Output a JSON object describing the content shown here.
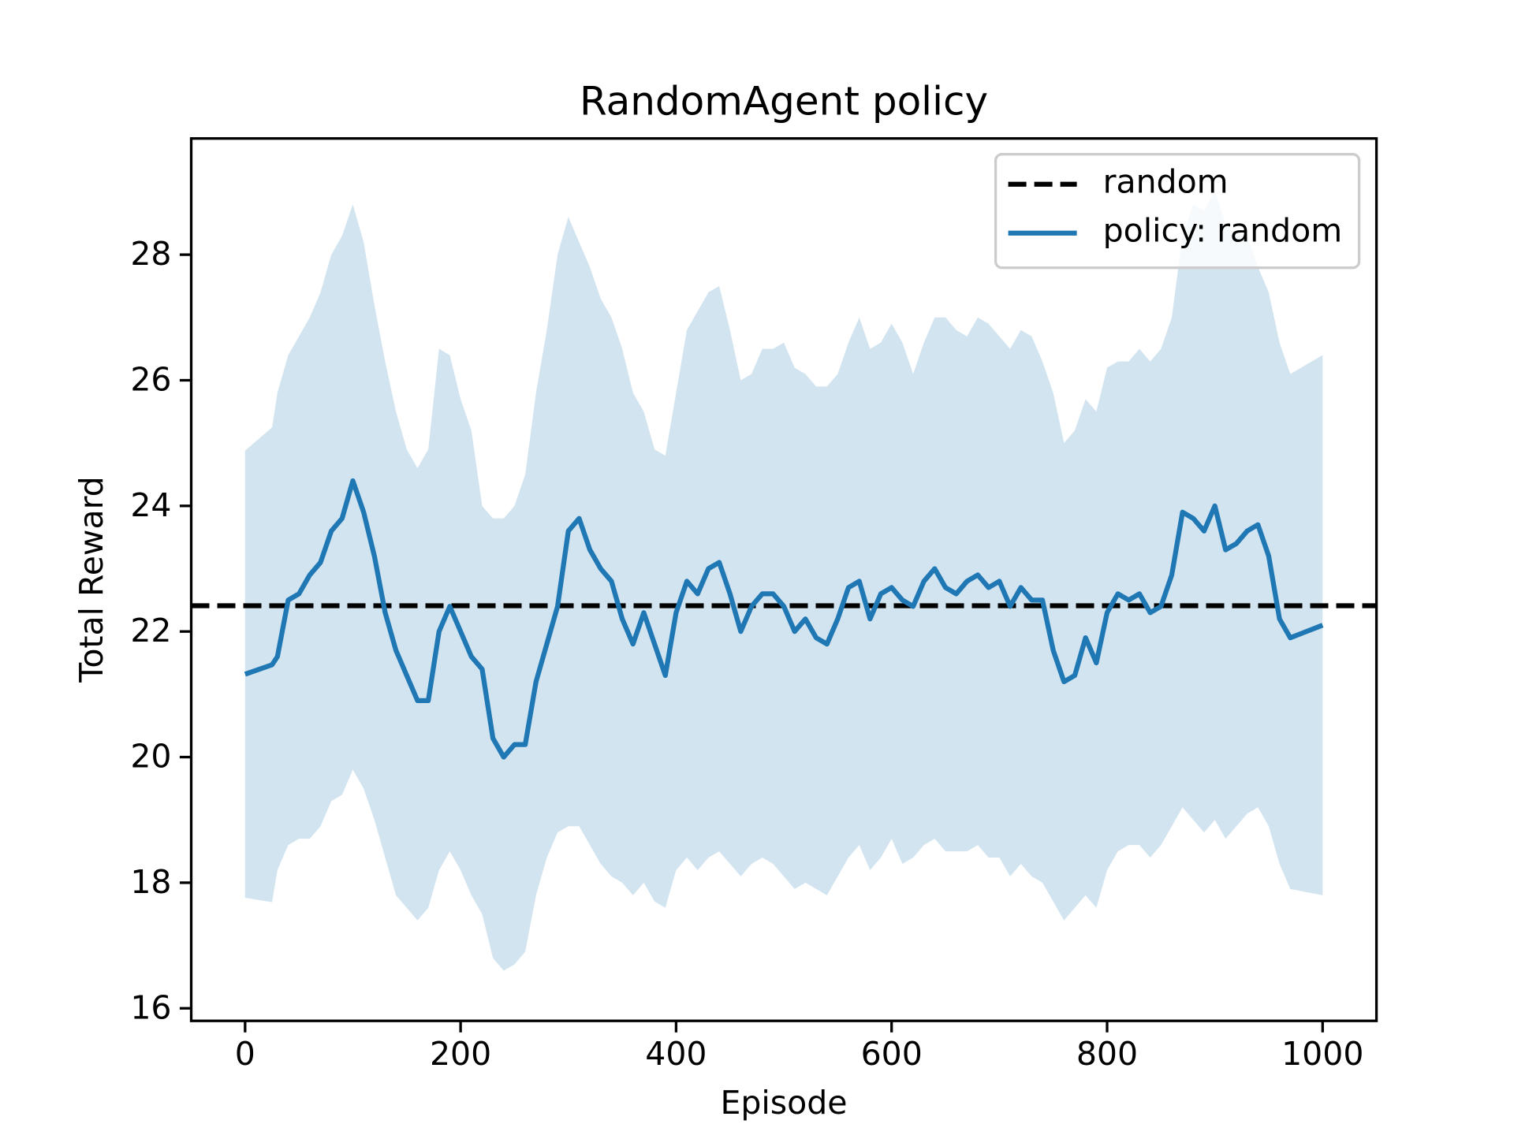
{
  "chart_data": {
    "type": "line",
    "title": "RandomAgent policy",
    "xlabel": "Episode",
    "ylabel": "Total Reward",
    "xlim": [
      -50,
      1050
    ],
    "ylim": [
      15.8,
      29.85
    ],
    "xticks": [
      0,
      200,
      400,
      600,
      800,
      1000
    ],
    "yticks": [
      16,
      18,
      20,
      22,
      24,
      26,
      28
    ],
    "grid": false,
    "legend": "upper right",
    "hline": {
      "name": "random",
      "value": 22.41,
      "color": "#000000",
      "dashed": true
    },
    "x": [
      0,
      25,
      30,
      40,
      50,
      60,
      70,
      80,
      90,
      100,
      110,
      120,
      130,
      140,
      150,
      160,
      170,
      180,
      190,
      200,
      210,
      220,
      230,
      240,
      250,
      260,
      270,
      280,
      290,
      300,
      310,
      320,
      330,
      340,
      350,
      360,
      370,
      380,
      390,
      400,
      410,
      420,
      430,
      440,
      450,
      460,
      470,
      480,
      490,
      500,
      510,
      520,
      530,
      540,
      550,
      560,
      570,
      580,
      590,
      600,
      610,
      620,
      630,
      640,
      650,
      660,
      670,
      680,
      690,
      700,
      710,
      720,
      730,
      740,
      750,
      760,
      770,
      780,
      790,
      800,
      810,
      820,
      830,
      840,
      850,
      860,
      870,
      880,
      890,
      900,
      910,
      920,
      930,
      940,
      950,
      960,
      970,
      1000
    ],
    "series": [
      {
        "name": "policy: random",
        "color": "#1f77b4",
        "band_opacity": 0.2,
        "values": [
          21.32,
          21.47,
          21.6,
          22.5,
          22.6,
          22.9,
          23.1,
          23.6,
          23.8,
          24.4,
          23.9,
          23.2,
          22.3,
          21.7,
          21.3,
          20.9,
          20.9,
          22.0,
          22.4,
          22.0,
          21.6,
          21.4,
          20.3,
          20.0,
          20.2,
          20.2,
          21.2,
          21.8,
          22.4,
          23.6,
          23.8,
          23.3,
          23.0,
          22.8,
          22.2,
          21.8,
          22.3,
          21.8,
          21.3,
          22.3,
          22.8,
          22.6,
          23.0,
          23.1,
          22.6,
          22.0,
          22.4,
          22.6,
          22.6,
          22.4,
          22.0,
          22.2,
          21.9,
          21.8,
          22.2,
          22.7,
          22.8,
          22.2,
          22.6,
          22.7,
          22.5,
          22.4,
          22.8,
          23.0,
          22.7,
          22.6,
          22.8,
          22.9,
          22.7,
          22.8,
          22.4,
          22.7,
          22.5,
          22.5,
          21.7,
          21.2,
          21.3,
          21.9,
          21.5,
          22.3,
          22.6,
          22.5,
          22.6,
          22.3,
          22.4,
          22.9,
          23.9,
          23.8,
          23.6,
          24.0,
          23.3,
          23.4,
          23.6,
          23.7,
          23.2,
          22.2,
          21.9,
          22.1
        ],
        "upper": [
          24.88,
          25.25,
          25.8,
          26.4,
          26.7,
          27.0,
          27.4,
          28.0,
          28.3,
          28.8,
          28.2,
          27.2,
          26.3,
          25.5,
          24.9,
          24.6,
          24.9,
          26.5,
          26.4,
          25.7,
          25.2,
          24.0,
          23.8,
          23.8,
          24.0,
          24.5,
          25.8,
          26.8,
          28.0,
          28.6,
          28.2,
          27.8,
          27.3,
          27.0,
          26.5,
          25.8,
          25.5,
          24.9,
          24.8,
          25.8,
          26.8,
          27.1,
          27.4,
          27.5,
          26.8,
          26.0,
          26.1,
          26.5,
          26.5,
          26.6,
          26.2,
          26.1,
          25.9,
          25.9,
          26.1,
          26.6,
          27.0,
          26.5,
          26.6,
          26.9,
          26.6,
          26.1,
          26.6,
          27.0,
          27.0,
          26.8,
          26.7,
          27.0,
          26.9,
          26.7,
          26.5,
          26.8,
          26.7,
          26.3,
          25.8,
          25.0,
          25.2,
          25.7,
          25.5,
          26.2,
          26.3,
          26.3,
          26.5,
          26.3,
          26.5,
          27.0,
          28.3,
          28.8,
          28.7,
          29.0,
          28.5,
          28.3,
          28.3,
          27.8,
          27.4,
          26.6,
          26.1,
          26.4
        ],
        "lower": [
          17.76,
          17.69,
          18.2,
          18.6,
          18.7,
          18.7,
          18.9,
          19.3,
          19.4,
          19.8,
          19.5,
          19.0,
          18.4,
          17.8,
          17.6,
          17.4,
          17.6,
          18.2,
          18.5,
          18.2,
          17.8,
          17.5,
          16.8,
          16.6,
          16.7,
          16.9,
          17.8,
          18.4,
          18.8,
          18.9,
          18.9,
          18.6,
          18.3,
          18.1,
          18.0,
          17.8,
          18.0,
          17.7,
          17.6,
          18.2,
          18.4,
          18.2,
          18.4,
          18.5,
          18.3,
          18.1,
          18.3,
          18.4,
          18.3,
          18.1,
          17.9,
          18.0,
          17.9,
          17.8,
          18.1,
          18.4,
          18.6,
          18.2,
          18.4,
          18.7,
          18.3,
          18.4,
          18.6,
          18.7,
          18.5,
          18.5,
          18.5,
          18.6,
          18.4,
          18.4,
          18.1,
          18.3,
          18.1,
          18.0,
          17.7,
          17.4,
          17.6,
          17.8,
          17.6,
          18.2,
          18.5,
          18.6,
          18.6,
          18.4,
          18.6,
          18.9,
          19.2,
          19.0,
          18.8,
          19.0,
          18.7,
          18.9,
          19.1,
          19.2,
          18.9,
          18.3,
          17.9,
          17.8
        ]
      }
    ]
  }
}
